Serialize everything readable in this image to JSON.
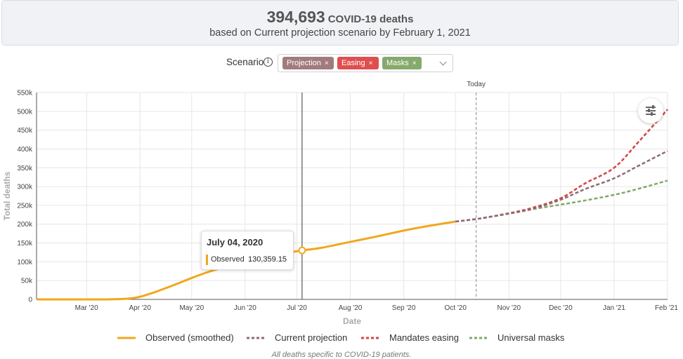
{
  "summary": {
    "count": "394,693",
    "label": "COVID-19 deaths",
    "subtitle": "based on Current projection scenario by February 1, 2021"
  },
  "scenario": {
    "label": "Scenario",
    "info_icon": "i",
    "tags": [
      {
        "label": "Projection",
        "color": "#a27b7f"
      },
      {
        "label": "Easing",
        "color": "#df4f4f"
      },
      {
        "label": "Masks",
        "color": "#86a96c"
      }
    ],
    "remove_glyph": "×"
  },
  "today_label": "Today",
  "tooltip": {
    "date": "July 04, 2020",
    "series": "Observed",
    "value": "130,359.15"
  },
  "legend": [
    {
      "label": "Observed (smoothed)",
      "color": "#f0a81e",
      "dashed": false
    },
    {
      "label": "Current projection",
      "color": "#8e6c72",
      "dashed": true
    },
    {
      "label": "Mandates easing",
      "color": "#d64444",
      "dashed": true
    },
    {
      "label": "Universal masks",
      "color": "#7fa96a",
      "dashed": true
    }
  ],
  "footnote": "All deaths specific to COVID-19 patients.",
  "chart_data": {
    "type": "line",
    "xlabel": "Date",
    "ylabel": "Total deaths",
    "x_range": [
      "2020-02-01",
      "2021-02-01"
    ],
    "ylim": [
      0,
      550000
    ],
    "y_ticks": [
      0,
      50000,
      100000,
      150000,
      200000,
      250000,
      300000,
      350000,
      400000,
      450000,
      500000,
      550000
    ],
    "y_tick_labels": [
      "0",
      "50k",
      "100k",
      "150k",
      "200k",
      "250k",
      "300k",
      "350k",
      "400k",
      "450k",
      "500k",
      "550k"
    ],
    "x_ticks": [
      "2020-03-01",
      "2020-04-01",
      "2020-05-01",
      "2020-06-01",
      "2020-07-01",
      "2020-08-01",
      "2020-09-01",
      "2020-10-01",
      "2020-11-01",
      "2020-12-01",
      "2021-01-01",
      "2021-02-01"
    ],
    "x_tick_labels": [
      "Mar '20",
      "Apr '20",
      "May '20",
      "Jun '20",
      "Jul '20",
      "Aug '20",
      "Sep '20",
      "Oct '20",
      "Nov '20",
      "Dec '20",
      "Jan '21",
      "Feb '21"
    ],
    "grid": true,
    "today": "2020-10-13",
    "hover_date": "2020-07-04",
    "hover_value": 130359.15,
    "series": [
      {
        "name": "Observed (smoothed)",
        "color": "#f0a81e",
        "dashed": false,
        "points": [
          [
            "2020-02-01",
            0
          ],
          [
            "2020-03-01",
            0
          ],
          [
            "2020-03-15",
            200
          ],
          [
            "2020-03-25",
            2000
          ],
          [
            "2020-04-01",
            7000
          ],
          [
            "2020-04-10",
            20000
          ],
          [
            "2020-04-20",
            37000
          ],
          [
            "2020-05-01",
            57000
          ],
          [
            "2020-05-10",
            72000
          ],
          [
            "2020-05-20",
            86000
          ],
          [
            "2020-06-01",
            103000
          ],
          [
            "2020-06-15",
            117000
          ],
          [
            "2020-07-01",
            128000
          ],
          [
            "2020-07-04",
            130359.15
          ],
          [
            "2020-07-15",
            137000
          ],
          [
            "2020-08-01",
            153000
          ],
          [
            "2020-08-15",
            166000
          ],
          [
            "2020-09-01",
            183000
          ],
          [
            "2020-09-15",
            195000
          ],
          [
            "2020-10-01",
            207000
          ]
        ]
      },
      {
        "name": "Current projection",
        "color": "#8e6c72",
        "dashed": true,
        "points": [
          [
            "2020-10-01",
            207000
          ],
          [
            "2020-10-15",
            215000
          ],
          [
            "2020-11-01",
            228000
          ],
          [
            "2020-11-15",
            241000
          ],
          [
            "2020-12-01",
            265000
          ],
          [
            "2020-12-15",
            293000
          ],
          [
            "2021-01-01",
            322000
          ],
          [
            "2021-01-15",
            355000
          ],
          [
            "2021-02-01",
            394693
          ]
        ]
      },
      {
        "name": "Mandates easing",
        "color": "#d64444",
        "dashed": true,
        "points": [
          [
            "2020-10-01",
            207000
          ],
          [
            "2020-10-15",
            215000
          ],
          [
            "2020-11-01",
            229000
          ],
          [
            "2020-11-15",
            244000
          ],
          [
            "2020-12-01",
            269000
          ],
          [
            "2020-12-15",
            308000
          ],
          [
            "2021-01-01",
            350000
          ],
          [
            "2021-01-15",
            418000
          ],
          [
            "2021-02-01",
            505000
          ]
        ]
      },
      {
        "name": "Universal masks",
        "color": "#7fa96a",
        "dashed": true,
        "points": [
          [
            "2020-10-01",
            207000
          ],
          [
            "2020-10-15",
            215000
          ],
          [
            "2020-11-01",
            229000
          ],
          [
            "2020-11-15",
            240000
          ],
          [
            "2020-12-01",
            252000
          ],
          [
            "2020-12-15",
            263000
          ],
          [
            "2021-01-01",
            278000
          ],
          [
            "2021-01-15",
            294000
          ],
          [
            "2021-02-01",
            316000
          ]
        ]
      }
    ]
  }
}
